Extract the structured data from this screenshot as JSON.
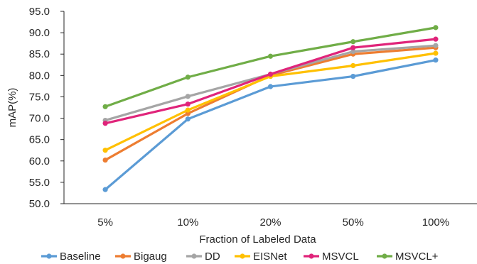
{
  "chart_data": {
    "type": "line",
    "categories": [
      "5%",
      "10%",
      "20%",
      "50%",
      "100%"
    ],
    "xlabel": "Fraction of Labeled Data",
    "ylabel": "mAP(%)",
    "ylim": [
      50.0,
      95.0
    ],
    "yticks": [
      "50.0",
      "55.0",
      "60.0",
      "65.0",
      "70.0",
      "75.0",
      "80.0",
      "85.0",
      "90.0",
      "95.0"
    ],
    "grid": false,
    "legend_position": "bottom",
    "series": [
      {
        "name": "Baseline",
        "color": "#5b9bd5",
        "values": [
          53.3,
          69.8,
          77.4,
          79.8,
          83.6
        ]
      },
      {
        "name": "Bigaug",
        "color": "#ed7d31",
        "values": [
          60.2,
          71.1,
          80.0,
          85.0,
          86.5
        ]
      },
      {
        "name": "DD",
        "color": "#a5a5a5",
        "values": [
          69.5,
          75.1,
          80.3,
          85.6,
          87.0
        ]
      },
      {
        "name": "EISNet",
        "color": "#ffc000",
        "values": [
          62.5,
          71.9,
          79.8,
          82.3,
          85.2
        ]
      },
      {
        "name": "MSVCL",
        "color": "#e0247a",
        "values": [
          68.8,
          73.3,
          80.3,
          86.5,
          88.5
        ]
      },
      {
        "name": "MSVCL+",
        "color": "#70ad47",
        "values": [
          72.7,
          79.6,
          84.5,
          87.9,
          91.2
        ]
      }
    ]
  }
}
